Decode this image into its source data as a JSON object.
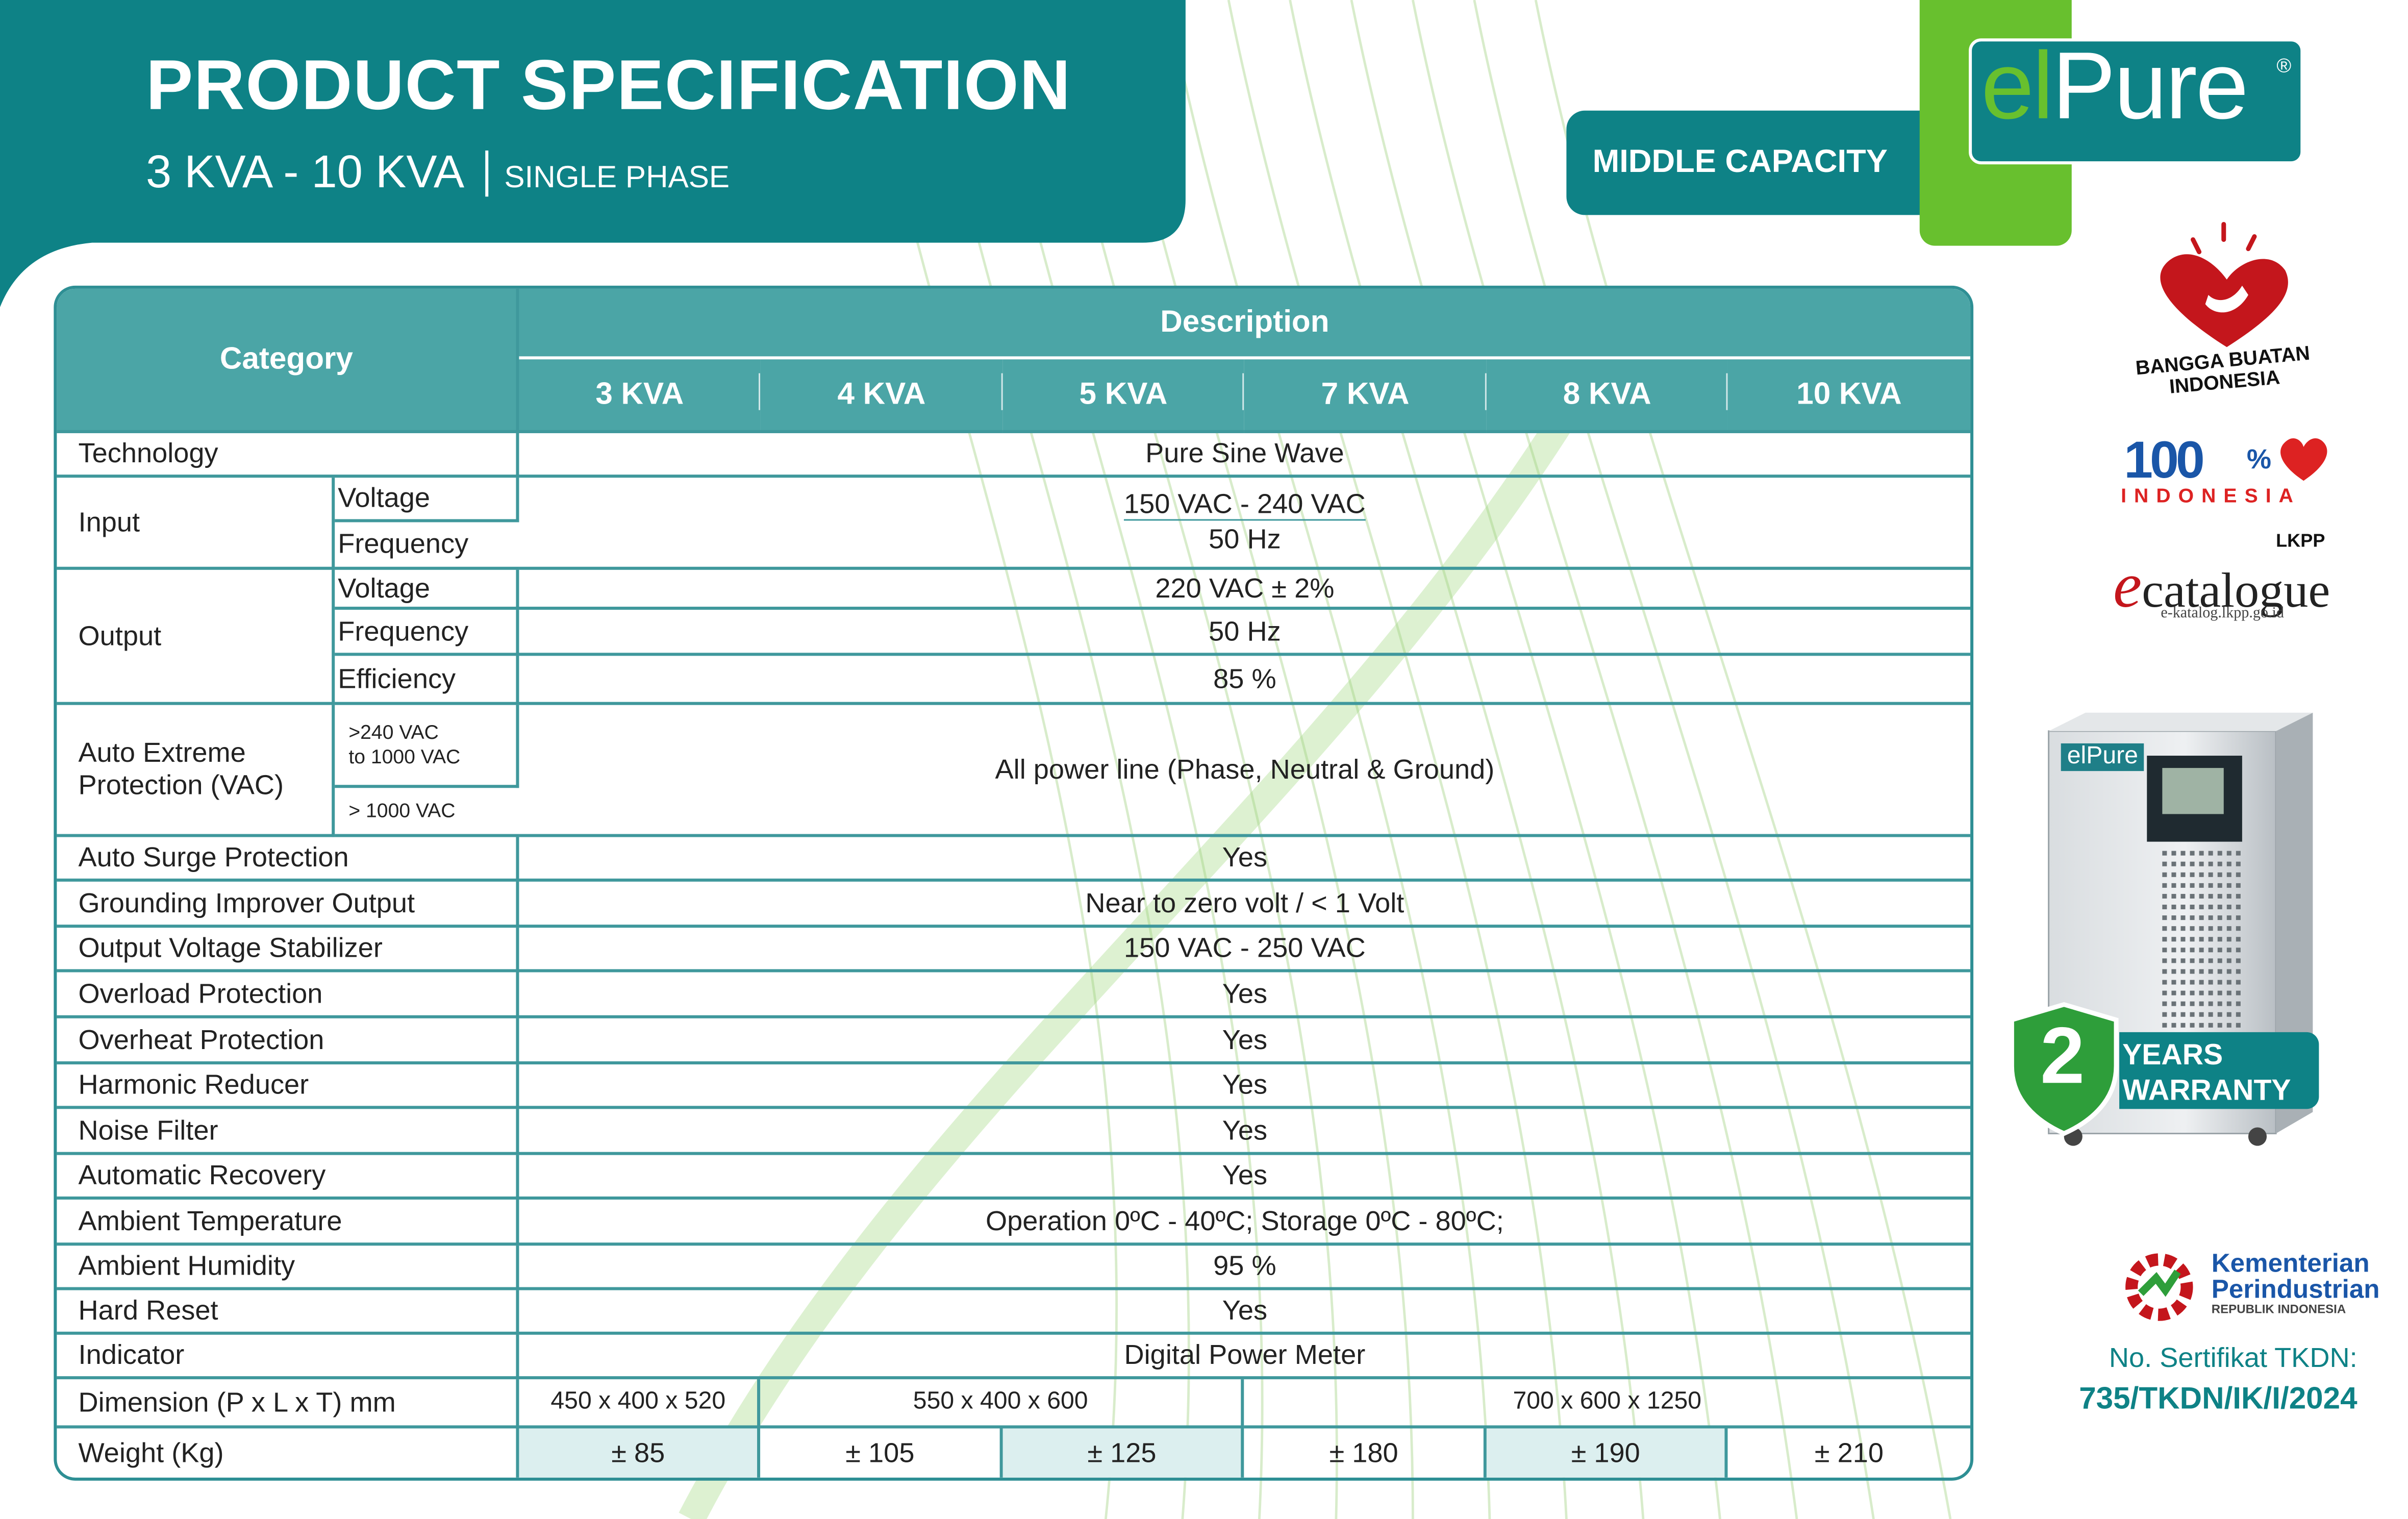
{
  "header": {
    "title": "PRODUCT SPECIFICATION",
    "range": "3 KVA - 10 KVA",
    "phase": "SINGLE PHASE"
  },
  "capacity_badge": "MIDDLE CAPACITY",
  "brand": {
    "logo_prefix": "el",
    "logo_main": "Pure",
    "registered": "®"
  },
  "colors": {
    "teal": "#0e8286",
    "teal_header": "#4ba5a6",
    "green": "#68c02e",
    "row_shade": "#dcefef"
  },
  "table": {
    "category_header": "Category",
    "description_header": "Description",
    "kva_columns": [
      "3 KVA",
      "4 KVA",
      "5 KVA",
      "7 KVA",
      "8 KVA",
      "10 KVA"
    ],
    "technology": {
      "label": "Technology",
      "value": "Pure Sine Wave"
    },
    "input": {
      "label": "Input",
      "voltage_label": "Voltage",
      "voltage_value": "150 VAC - 240 VAC",
      "frequency_label": "Frequency",
      "frequency_value": "50 Hz"
    },
    "output": {
      "label": "Output",
      "voltage_label": "Voltage",
      "voltage_value": "220 VAC ± 2%",
      "frequency_label": "Frequency",
      "frequency_value": "50 Hz",
      "efficiency_label": "Efficiency",
      "efficiency_value": "85 %"
    },
    "auto_extreme": {
      "label_line1": "Auto Extreme",
      "label_line2": "Protection (VAC)",
      "range1_line1": ">240 VAC",
      "range1_line2": "to 1000 VAC",
      "range2": "> 1000 VAC",
      "value": "All power line (Phase, Neutral & Ground)"
    },
    "rows": [
      {
        "label": "Auto Surge Protection",
        "value": "Yes"
      },
      {
        "label": "Grounding Improver Output",
        "value": "Near to zero volt / < 1 Volt"
      },
      {
        "label": "Output Voltage Stabilizer",
        "value": "150 VAC - 250 VAC"
      },
      {
        "label": "Overload Protection",
        "value": "Yes"
      },
      {
        "label": "Overheat Protection",
        "value": "Yes"
      },
      {
        "label": "Harmonic Reducer",
        "value": "Yes"
      },
      {
        "label": "Noise Filter",
        "value": "Yes"
      },
      {
        "label": "Automatic Recovery",
        "value": "Yes"
      },
      {
        "label": "Ambient Temperature",
        "value": "Operation 0ºC - 40ºC; Storage 0ºC - 80ºC;"
      },
      {
        "label": "Ambient Humidity",
        "value": "95 %"
      },
      {
        "label": "Hard Reset",
        "value": "Yes"
      },
      {
        "label": "Indicator",
        "value": "Digital Power Meter"
      }
    ],
    "dimension": {
      "label": "Dimension (P x L x T) mm",
      "values": [
        "450 x 400 x 520",
        "550 x 400 x 600",
        "700 x 600 x 1250"
      ]
    },
    "weight": {
      "label": "Weight (Kg)",
      "values": [
        "± 85",
        "± 105",
        "± 125",
        "± 180",
        "± 190",
        "± 210"
      ]
    }
  },
  "badges": {
    "bangga": "BANGGA BUATAN INDONESIA",
    "hundred_num": "100",
    "hundred_pct": "%",
    "hundred_word": "INDONESIA",
    "lkpp": "LKPP",
    "ecat_e": "e",
    "ecat_word": "catalogue",
    "ecat_url": "e-katalog.lkpp.go.id"
  },
  "product": {
    "device_logo": "elPure"
  },
  "warranty": {
    "number": "2",
    "line1": "YEARS",
    "line2": "WARRANTY"
  },
  "ministry": {
    "line1": "Kementerian",
    "line2": "Perindustrian",
    "line3": "REPUBLIK INDONESIA"
  },
  "certificate": {
    "label": "No. Sertifikat TKDN:",
    "number": "735/TKDN/IK/I/2024"
  }
}
